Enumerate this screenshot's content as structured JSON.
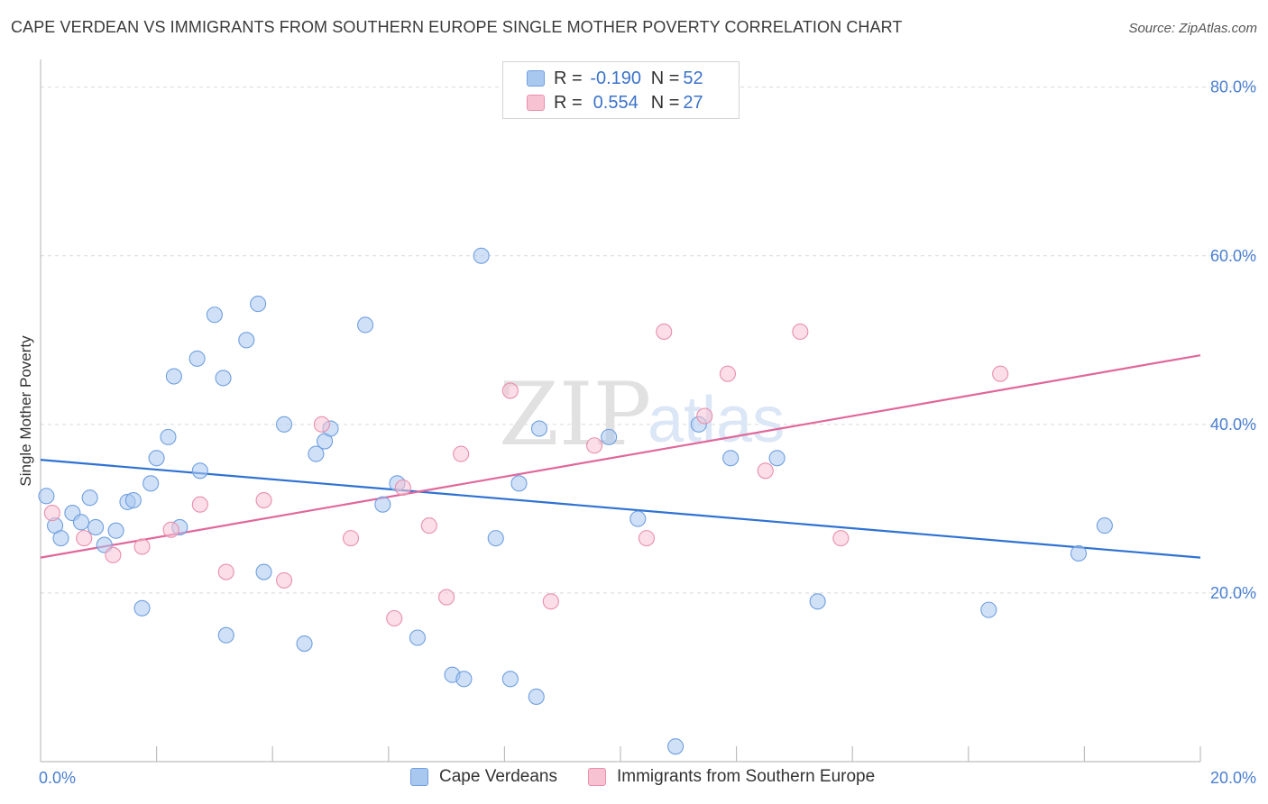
{
  "header": {
    "title": "CAPE VERDEAN VS IMMIGRANTS FROM SOUTHERN EUROPE SINGLE MOTHER POVERTY CORRELATION CHART",
    "source": "Source: ZipAtlas.com"
  },
  "watermark": {
    "zip": "ZIP",
    "atlas": "atlas"
  },
  "legend": {
    "rows": [
      {
        "r_label": "R =",
        "r_value": "-0.190",
        "n_label": "N =",
        "n_value": "52",
        "color": "#a9c8f0",
        "border": "#6f9fe0"
      },
      {
        "r_label": "R =",
        "r_value": "0.554",
        "n_label": "N =",
        "n_value": "27",
        "color": "#f7c3d3",
        "border": "#ea8fac"
      }
    ]
  },
  "bottom_legend": [
    {
      "label": "Cape Verdeans",
      "color": "#a9c8f0",
      "border": "#6f9fe0"
    },
    {
      "label": "Immigrants from Southern Europe",
      "color": "#f7c3d3",
      "border": "#ea8fac"
    }
  ],
  "chart_data": {
    "type": "scatter",
    "title": "CAPE VERDEAN VS IMMIGRANTS FROM SOUTHERN EUROPE SINGLE MOTHER POVERTY CORRELATION CHART",
    "xlabel": "",
    "ylabel": "Single Mother Poverty",
    "xlim": [
      0,
      20
    ],
    "ylim": [
      0,
      82
    ],
    "x_tick_labels": [
      "0.0%",
      "20.0%"
    ],
    "y_ticks": [
      20,
      40,
      60,
      80
    ],
    "y_tick_labels": [
      "20.0%",
      "40.0%",
      "60.0%",
      "80.0%"
    ],
    "grid": true,
    "legend_position": "top-center",
    "series": [
      {
        "name": "Cape Verdeans",
        "color": "#6f9fe0",
        "fill": "#a9c8f0",
        "line_color": "#2f72d2",
        "trend": {
          "x": [
            0,
            20
          ],
          "y": [
            35.8,
            24.2
          ]
        },
        "points": [
          [
            0.1,
            31.5
          ],
          [
            0.25,
            28.0
          ],
          [
            0.35,
            26.5
          ],
          [
            0.55,
            29.5
          ],
          [
            0.7,
            28.4
          ],
          [
            0.85,
            31.3
          ],
          [
            0.95,
            27.8
          ],
          [
            1.1,
            25.7
          ],
          [
            1.3,
            27.4
          ],
          [
            1.5,
            30.8
          ],
          [
            1.6,
            31.0
          ],
          [
            1.75,
            18.2
          ],
          [
            1.9,
            33.0
          ],
          [
            2.0,
            36.0
          ],
          [
            2.2,
            38.5
          ],
          [
            2.3,
            45.7
          ],
          [
            2.4,
            27.8
          ],
          [
            2.7,
            47.8
          ],
          [
            2.75,
            34.5
          ],
          [
            3.0,
            53.0
          ],
          [
            3.15,
            45.5
          ],
          [
            3.2,
            15.0
          ],
          [
            3.55,
            50.0
          ],
          [
            3.75,
            54.3
          ],
          [
            3.85,
            22.5
          ],
          [
            4.2,
            40.0
          ],
          [
            4.55,
            14.0
          ],
          [
            4.75,
            36.5
          ],
          [
            4.9,
            38.0
          ],
          [
            5.0,
            39.5
          ],
          [
            5.6,
            51.8
          ],
          [
            5.9,
            30.5
          ],
          [
            6.15,
            33.0
          ],
          [
            6.5,
            14.7
          ],
          [
            7.1,
            10.3
          ],
          [
            7.3,
            9.8
          ],
          [
            7.6,
            60.0
          ],
          [
            7.85,
            26.5
          ],
          [
            8.1,
            9.8
          ],
          [
            8.25,
            33.0
          ],
          [
            8.55,
            7.7
          ],
          [
            8.6,
            39.5
          ],
          [
            9.8,
            38.5
          ],
          [
            10.3,
            28.8
          ],
          [
            10.95,
            1.8
          ],
          [
            11.35,
            40.0
          ],
          [
            11.9,
            36.0
          ],
          [
            12.7,
            36.0
          ],
          [
            13.4,
            19.0
          ],
          [
            16.35,
            18.0
          ],
          [
            17.9,
            24.7
          ],
          [
            18.35,
            28.0
          ]
        ]
      },
      {
        "name": "Immigrants from Southern Europe",
        "color": "#ea8fac",
        "fill": "#f7c3d3",
        "line_color": "#e0679a",
        "trend": {
          "x": [
            0,
            20
          ],
          "y": [
            24.2,
            48.2
          ]
        },
        "points": [
          [
            0.2,
            29.5
          ],
          [
            0.75,
            26.5
          ],
          [
            1.25,
            24.5
          ],
          [
            1.75,
            25.5
          ],
          [
            2.25,
            27.5
          ],
          [
            2.75,
            30.5
          ],
          [
            3.2,
            22.5
          ],
          [
            3.85,
            31.0
          ],
          [
            4.2,
            21.5
          ],
          [
            4.85,
            40.0
          ],
          [
            5.35,
            26.5
          ],
          [
            6.1,
            17.0
          ],
          [
            6.25,
            32.5
          ],
          [
            6.7,
            28.0
          ],
          [
            7.0,
            19.5
          ],
          [
            7.25,
            36.5
          ],
          [
            8.1,
            44.0
          ],
          [
            8.8,
            19.0
          ],
          [
            9.55,
            37.5
          ],
          [
            10.45,
            26.5
          ],
          [
            10.75,
            51.0
          ],
          [
            11.45,
            41.0
          ],
          [
            11.85,
            46.0
          ],
          [
            12.5,
            34.5
          ],
          [
            13.1,
            51.0
          ],
          [
            13.8,
            26.5
          ],
          [
            16.55,
            46.0
          ]
        ]
      }
    ]
  }
}
